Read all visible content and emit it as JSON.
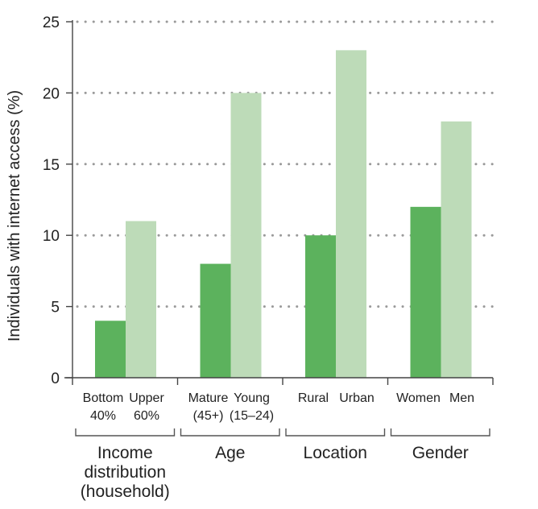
{
  "chart_data": {
    "type": "bar",
    "ylabel": "Individuals with internet access (%)",
    "ylim": [
      0,
      25
    ],
    "yticks": [
      "0",
      "5",
      "10",
      "15",
      "20",
      "25"
    ],
    "grid": true,
    "colors": {
      "dark": "#5cb25d",
      "light": "#bddbb8",
      "axis": "#444444",
      "grid": "#9a9a9a"
    },
    "groups": [
      {
        "label": [
          "Income",
          "distribution",
          "(household)"
        ],
        "bars": [
          {
            "label": [
              "Bottom",
              "40%"
            ],
            "value": 4,
            "shade": "dark"
          },
          {
            "label": [
              "Upper",
              "60%"
            ],
            "value": 11,
            "shade": "light"
          }
        ]
      },
      {
        "label": [
          "Age"
        ],
        "bars": [
          {
            "label": [
              "Mature",
              "(45+)"
            ],
            "value": 8,
            "shade": "dark"
          },
          {
            "label": [
              "Young",
              "(15–24)"
            ],
            "value": 20,
            "shade": "light"
          }
        ]
      },
      {
        "label": [
          "Location"
        ],
        "bars": [
          {
            "label": [
              "Rural"
            ],
            "value": 10,
            "shade": "dark"
          },
          {
            "label": [
              "Urban"
            ],
            "value": 23,
            "shade": "light"
          }
        ]
      },
      {
        "label": [
          "Gender"
        ],
        "bars": [
          {
            "label": [
              "Women"
            ],
            "value": 12,
            "shade": "dark"
          },
          {
            "label": [
              "Men"
            ],
            "value": 18,
            "shade": "light"
          }
        ]
      }
    ]
  }
}
